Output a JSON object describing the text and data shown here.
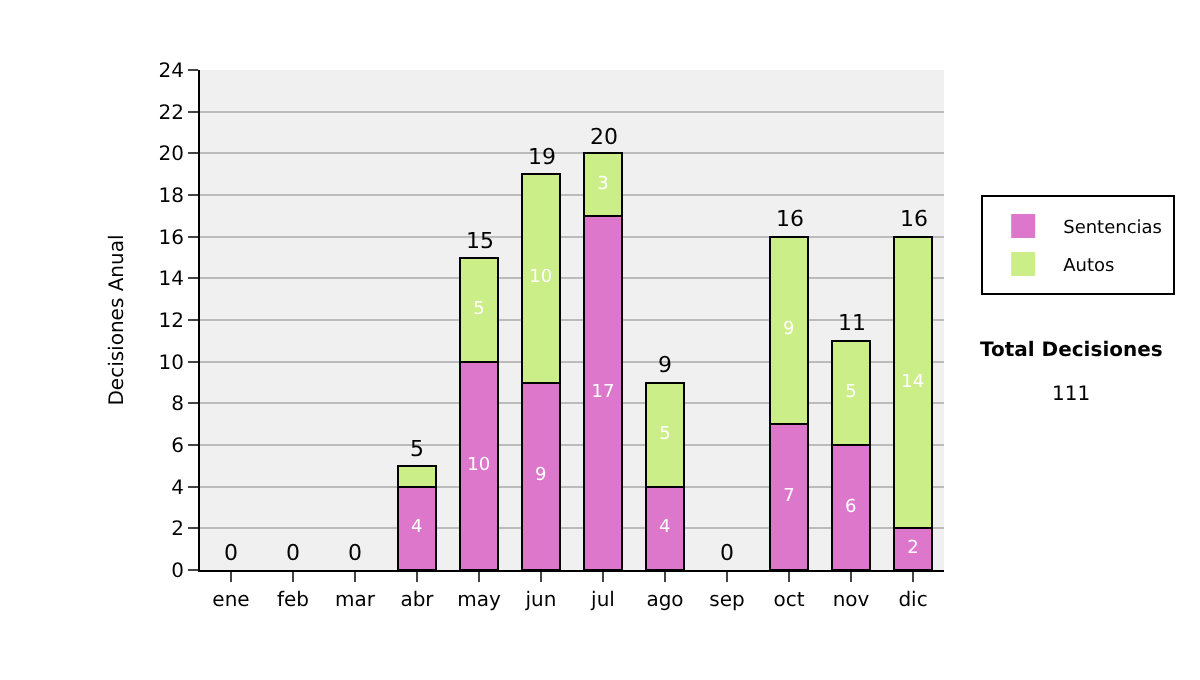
{
  "chart_data": {
    "type": "bar",
    "stacked": true,
    "ylabel": "Decisiones Anual",
    "categories": [
      "ene",
      "feb",
      "mar",
      "abr",
      "may",
      "jun",
      "jul",
      "ago",
      "sep",
      "oct",
      "nov",
      "dic"
    ],
    "series": [
      {
        "name": "Sentencias",
        "color": "#dd77cc",
        "values": [
          0,
          0,
          0,
          4,
          10,
          9,
          17,
          4,
          0,
          7,
          6,
          2
        ],
        "value_labels": [
          null,
          null,
          null,
          "4",
          "10",
          "9",
          "17",
          "4",
          null,
          "7",
          "6",
          "2"
        ]
      },
      {
        "name": "Autos",
        "color": "#ccee88",
        "values": [
          0,
          0,
          0,
          1,
          5,
          10,
          3,
          5,
          0,
          9,
          5,
          14
        ],
        "value_labels": [
          null,
          null,
          null,
          null,
          "5",
          "10",
          "3",
          "5",
          null,
          "9",
          "5",
          "14"
        ]
      }
    ],
    "totals": [
      "0",
      "0",
      "0",
      "5",
      "15",
      "19",
      "20",
      "9",
      "0",
      "16",
      "11",
      "16"
    ],
    "ylim": [
      0,
      24
    ],
    "yticks": [
      0,
      2,
      4,
      6,
      8,
      10,
      12,
      14,
      16,
      18,
      20,
      22,
      24
    ],
    "grid": "y",
    "legend": "right",
    "annotations": [
      "Total Decisiones",
      "111"
    ]
  }
}
